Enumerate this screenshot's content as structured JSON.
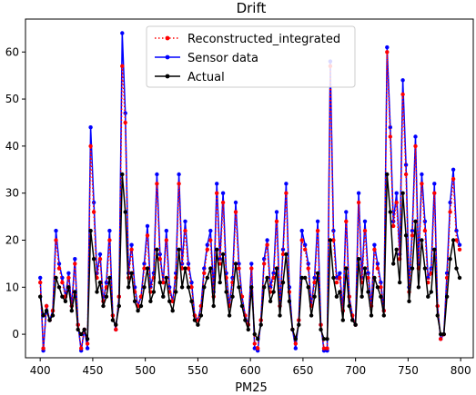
{
  "chart_data": {
    "type": "line",
    "title": "Drift",
    "xlabel": "PM25",
    "ylabel": "",
    "xlim": [
      386,
      812
    ],
    "ylim": [
      -5,
      67
    ],
    "xticks": [
      400,
      450,
      500,
      550,
      600,
      650,
      700,
      750,
      800
    ],
    "yticks": [
      0,
      10,
      20,
      30,
      40,
      50,
      60
    ],
    "legend_position": "top-center",
    "grid": false,
    "series": [
      {
        "name": "Reconstructed_integrated",
        "color": "#ff0000",
        "style": "dotted",
        "marker": "circle",
        "x": [
          400,
          403,
          406,
          409,
          412,
          415,
          418,
          421,
          424,
          427,
          430,
          433,
          436,
          439,
          442,
          445,
          448,
          451,
          454,
          457,
          460,
          463,
          466,
          469,
          472,
          475,
          478,
          481,
          484,
          487,
          490,
          493,
          496,
          499,
          502,
          505,
          508,
          511,
          514,
          517,
          520,
          523,
          526,
          529,
          532,
          535,
          538,
          541,
          544,
          547,
          550,
          553,
          556,
          559,
          562,
          565,
          568,
          571,
          574,
          577,
          580,
          583,
          586,
          589,
          592,
          595,
          598,
          601,
          604,
          607,
          610,
          613,
          616,
          619,
          622,
          625,
          628,
          631,
          634,
          637,
          640,
          643,
          646,
          649,
          652,
          655,
          658,
          661,
          664,
          667,
          670,
          673,
          676,
          679,
          682,
          685,
          688,
          691,
          694,
          697,
          700,
          703,
          706,
          709,
          712,
          715,
          718,
          721,
          724,
          727,
          730,
          733,
          736,
          739,
          742,
          745,
          748,
          751,
          754,
          757,
          760,
          763,
          766,
          769,
          772,
          775,
          778,
          781,
          784,
          787,
          790,
          793,
          796,
          799
        ],
        "y": [
          11,
          -3,
          6,
          3,
          5,
          20,
          14,
          11,
          8,
          12,
          6,
          15,
          2,
          -3,
          1,
          -2,
          40,
          26,
          12,
          16,
          7,
          10,
          20,
          4,
          1,
          8,
          57,
          45,
          12,
          18,
          9,
          6,
          8,
          14,
          21,
          9,
          12,
          32,
          16,
          11,
          20,
          9,
          7,
          12,
          32,
          14,
          22,
          14,
          10,
          4,
          3,
          6,
          13,
          18,
          20,
          8,
          30,
          15,
          28,
          12,
          6,
          11,
          26,
          14,
          8,
          4,
          2,
          14,
          -2,
          -3,
          3,
          15,
          19,
          9,
          12,
          24,
          6,
          17,
          30,
          9,
          1,
          -2,
          3,
          20,
          18,
          14,
          6,
          11,
          22,
          2,
          -3,
          -3,
          57,
          20,
          11,
          12,
          5,
          24,
          8,
          4,
          2,
          28,
          11,
          22,
          12,
          6,
          18,
          14,
          10,
          5,
          60,
          42,
          23,
          28,
          16,
          51,
          34,
          9,
          21,
          40,
          14,
          32,
          22,
          11,
          13,
          30,
          6,
          -1,
          0,
          12,
          26,
          33,
          20,
          18
        ]
      },
      {
        "name": "Sensor data",
        "color": "#0000ff",
        "style": "solid",
        "marker": "circle",
        "x": [
          400,
          403,
          406,
          409,
          412,
          415,
          418,
          421,
          424,
          427,
          430,
          433,
          436,
          439,
          442,
          445,
          448,
          451,
          454,
          457,
          460,
          463,
          466,
          469,
          472,
          475,
          478,
          481,
          484,
          487,
          490,
          493,
          496,
          499,
          502,
          505,
          508,
          511,
          514,
          517,
          520,
          523,
          526,
          529,
          532,
          535,
          538,
          541,
          544,
          547,
          550,
          553,
          556,
          559,
          562,
          565,
          568,
          571,
          574,
          577,
          580,
          583,
          586,
          589,
          592,
          595,
          598,
          601,
          604,
          607,
          610,
          613,
          616,
          619,
          622,
          625,
          628,
          631,
          634,
          637,
          640,
          643,
          646,
          649,
          652,
          655,
          658,
          661,
          664,
          667,
          670,
          673,
          676,
          679,
          682,
          685,
          688,
          691,
          694,
          697,
          700,
          703,
          706,
          709,
          712,
          715,
          718,
          721,
          724,
          727,
          730,
          733,
          736,
          739,
          742,
          745,
          748,
          751,
          754,
          757,
          760,
          763,
          766,
          769,
          772,
          775,
          778,
          781,
          784,
          787,
          790,
          793,
          796,
          799
        ],
        "y": [
          12,
          -3.5,
          6,
          3,
          5,
          22,
          15,
          12,
          8,
          13,
          6,
          16,
          2,
          -3.5,
          1,
          -3,
          44,
          28,
          13,
          17,
          7,
          11,
          22,
          4,
          1,
          8,
          64,
          47,
          13,
          19,
          10,
          6,
          8,
          15,
          23,
          10,
          13,
          34,
          17,
          11,
          22,
          10,
          7,
          13,
          34,
          15,
          24,
          15,
          11,
          4,
          3,
          6,
          14,
          19,
          22,
          9,
          32,
          16,
          30,
          13,
          6,
          12,
          28,
          15,
          8,
          4,
          2,
          15,
          -3,
          -3.5,
          3,
          16,
          20,
          10,
          13,
          26,
          6,
          18,
          32,
          10,
          1,
          -3,
          3,
          22,
          19,
          15,
          6,
          12,
          24,
          2,
          -3.5,
          -3.5,
          58,
          22,
          12,
          13,
          5,
          26,
          8,
          4,
          2,
          30,
          12,
          24,
          13,
          6,
          19,
          15,
          11,
          5,
          61,
          44,
          24,
          30,
          17,
          54,
          36,
          10,
          22,
          42,
          15,
          34,
          24,
          12,
          14,
          32,
          6,
          -1,
          0,
          13,
          28,
          35,
          22,
          19
        ]
      },
      {
        "name": "Actual",
        "color": "#000000",
        "style": "solid",
        "marker": "circle",
        "x": [
          400,
          403,
          406,
          409,
          412,
          415,
          418,
          421,
          424,
          427,
          430,
          433,
          436,
          439,
          442,
          445,
          448,
          451,
          454,
          457,
          460,
          463,
          466,
          469,
          472,
          475,
          478,
          481,
          484,
          487,
          490,
          493,
          496,
          499,
          502,
          505,
          508,
          511,
          514,
          517,
          520,
          523,
          526,
          529,
          532,
          535,
          538,
          541,
          544,
          547,
          550,
          553,
          556,
          559,
          562,
          565,
          568,
          571,
          574,
          577,
          580,
          583,
          586,
          589,
          592,
          595,
          598,
          601,
          604,
          607,
          610,
          613,
          616,
          619,
          622,
          625,
          628,
          631,
          634,
          637,
          640,
          643,
          646,
          649,
          652,
          655,
          658,
          661,
          664,
          667,
          670,
          673,
          676,
          679,
          682,
          685,
          688,
          691,
          694,
          697,
          700,
          703,
          706,
          709,
          712,
          715,
          718,
          721,
          724,
          727,
          730,
          733,
          736,
          739,
          742,
          745,
          748,
          751,
          754,
          757,
          760,
          763,
          766,
          769,
          772,
          775,
          778,
          781,
          784,
          787,
          790,
          793,
          796,
          799
        ],
        "y": [
          8,
          4,
          5,
          3,
          4,
          12,
          10,
          8,
          7,
          10,
          5,
          9,
          1,
          0,
          1,
          -1,
          22,
          16,
          9,
          11,
          6,
          8,
          12,
          3,
          2,
          6,
          34,
          26,
          10,
          13,
          7,
          5,
          6,
          10,
          14,
          7,
          9,
          18,
          11,
          8,
          12,
          7,
          5,
          9,
          18,
          10,
          14,
          10,
          7,
          3,
          2,
          4,
          10,
          12,
          14,
          6,
          18,
          11,
          17,
          9,
          4,
          8,
          15,
          10,
          6,
          3,
          1,
          10,
          0,
          -1,
          2,
          10,
          12,
          7,
          9,
          14,
          4,
          11,
          17,
          7,
          1,
          -1,
          2,
          12,
          12,
          10,
          4,
          8,
          13,
          1,
          -1,
          -1,
          20,
          12,
          8,
          9,
          3,
          14,
          6,
          3,
          2,
          16,
          8,
          14,
          9,
          4,
          12,
          10,
          8,
          4,
          34,
          26,
          15,
          18,
          11,
          30,
          21,
          7,
          14,
          24,
          10,
          20,
          14,
          8,
          9,
          18,
          4,
          0,
          0,
          8,
          16,
          20,
          14,
          12
        ]
      }
    ]
  }
}
